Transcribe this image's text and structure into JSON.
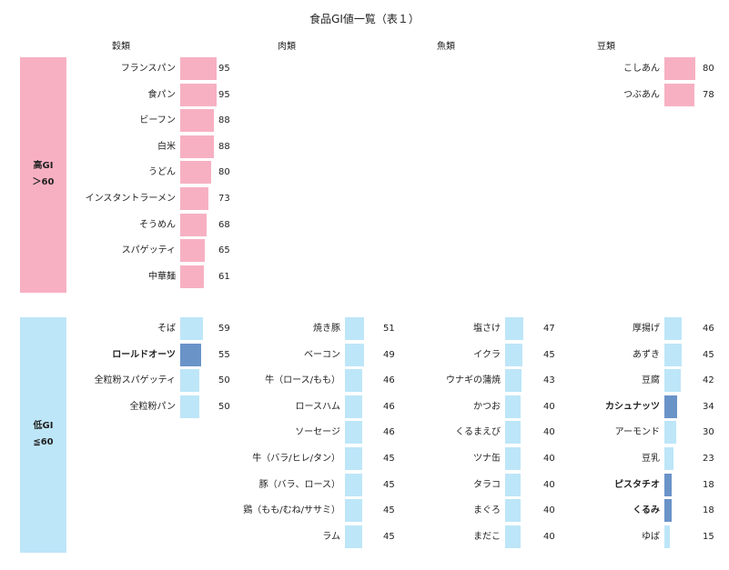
{
  "chart_data": {
    "type": "bar",
    "title": "食品GI値一覧（表１）",
    "groups": [
      "穀類",
      "肉類",
      "魚類",
      "豆類"
    ],
    "bands": [
      {
        "label_line1": "高GI",
        "label_line2": "＞60",
        "color": "#f7b0c2"
      },
      {
        "label_line1": "低GI",
        "label_line2": "≦60",
        "color": "#bde6f8"
      }
    ],
    "highlight_color": "#6a93c8",
    "value_max": 100,
    "series": [
      {
        "group": "穀類",
        "band": 0,
        "items": [
          {
            "name": "フランスパン",
            "value": 95
          },
          {
            "name": "食パン",
            "value": 95
          },
          {
            "name": "ビーフン",
            "value": 88
          },
          {
            "name": "白米",
            "value": 88
          },
          {
            "name": "うどん",
            "value": 80
          },
          {
            "name": "インスタントラーメン",
            "value": 73
          },
          {
            "name": "そうめん",
            "value": 68
          },
          {
            "name": "スパゲッティ",
            "value": 65
          },
          {
            "name": "中華麺",
            "value": 61
          }
        ]
      },
      {
        "group": "豆類",
        "band": 0,
        "items": [
          {
            "name": "こしあん",
            "value": 80
          },
          {
            "name": "つぶあん",
            "value": 78
          }
        ]
      },
      {
        "group": "穀類",
        "band": 1,
        "items": [
          {
            "name": "そば",
            "value": 59
          },
          {
            "name": "ロールドオーツ",
            "value": 55,
            "highlight": true
          },
          {
            "name": "全粒粉スパゲッティ",
            "value": 50
          },
          {
            "name": "全粒粉パン",
            "value": 50
          }
        ]
      },
      {
        "group": "肉類",
        "band": 1,
        "items": [
          {
            "name": "焼き豚",
            "value": 51
          },
          {
            "name": "ベーコン",
            "value": 49
          },
          {
            "name": "牛（ロース/もも）",
            "value": 46
          },
          {
            "name": "ロースハム",
            "value": 46
          },
          {
            "name": "ソーセージ",
            "value": 46
          },
          {
            "name": "牛（バラ/ヒレ/タン）",
            "value": 45
          },
          {
            "name": "豚（バラ、ロース）",
            "value": 45
          },
          {
            "name": "鶏（もも/むね/ササミ）",
            "value": 45
          },
          {
            "name": "ラム",
            "value": 45
          }
        ]
      },
      {
        "group": "魚類",
        "band": 1,
        "items": [
          {
            "name": "塩さけ",
            "value": 47
          },
          {
            "name": "イクラ",
            "value": 45
          },
          {
            "name": "ウナギの蒲焼",
            "value": 43
          },
          {
            "name": "かつお",
            "value": 40
          },
          {
            "name": "くるまえび",
            "value": 40
          },
          {
            "name": "ツナ缶",
            "value": 40
          },
          {
            "name": "タラコ",
            "value": 40
          },
          {
            "name": "まぐろ",
            "value": 40
          },
          {
            "name": "まだこ",
            "value": 40
          }
        ]
      },
      {
        "group": "豆類",
        "band": 1,
        "items": [
          {
            "name": "厚揚げ",
            "value": 46
          },
          {
            "name": "あずき",
            "value": 45
          },
          {
            "name": "豆腐",
            "value": 42
          },
          {
            "name": "カシュナッツ",
            "value": 34,
            "highlight": true
          },
          {
            "name": "アーモンド",
            "value": 30
          },
          {
            "name": "豆乳",
            "value": 23
          },
          {
            "name": "ピスタチオ",
            "value": 18,
            "highlight": true
          },
          {
            "name": "くるみ",
            "value": 18,
            "highlight": true
          },
          {
            "name": "ゆば",
            "value": 15
          }
        ]
      }
    ]
  }
}
